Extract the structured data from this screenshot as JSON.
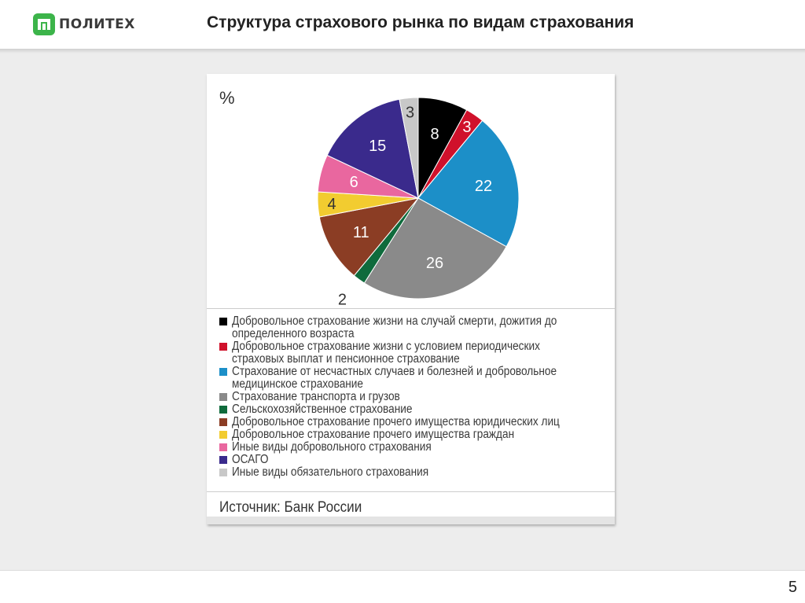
{
  "header": {
    "logo_text": "ПОЛИТЕХ",
    "title": "Структура страхового рынка по видам страхования"
  },
  "footer": {
    "page_number": "5"
  },
  "colors": {
    "logo_green": "#3cb44a",
    "content_bg": "#ededed"
  },
  "chart_data": {
    "type": "pie",
    "unit_label": "%",
    "start_angle_deg": 0,
    "direction": "clockwise",
    "slices": [
      {
        "label": "Добровольное страхование жизни на случай смерти, дожития до определенного возраста",
        "value": 8,
        "color": "#000000",
        "label_color": "#ffffff"
      },
      {
        "label": "Добровольное страхование жизни с условием периодических страховых выплат и пенсионное страхование",
        "value": 3,
        "color": "#d0112b",
        "label_color": "#ffffff"
      },
      {
        "label": "Страхование от несчастных случаев и болезней и добровольное медицинское страхование",
        "value": 22,
        "color": "#1c8fc8",
        "label_color": "#ffffff"
      },
      {
        "label": "Страхование транспорта и грузов",
        "value": 26,
        "color": "#8a8a8a",
        "label_color": "#ffffff"
      },
      {
        "label": "Сельскохозяйственное страхование",
        "value": 2,
        "color": "#0f6b3c",
        "label_color": "#333333",
        "label_outside": true
      },
      {
        "label": "Добровольное страхование прочего имущества юридических лиц",
        "value": 11,
        "color": "#8b3d24",
        "label_color": "#ffffff"
      },
      {
        "label": "Добровольное страхование прочего имущества граждан",
        "value": 4,
        "color": "#f2cc30",
        "label_color": "#333333"
      },
      {
        "label": "Иные виды добровольного страхования",
        "value": 6,
        "color": "#e9679f",
        "label_color": "#ffffff"
      },
      {
        "label": "ОСАГО",
        "value": 15,
        "color": "#3a2a8c",
        "label_color": "#ffffff"
      },
      {
        "label": "Иные виды обязательного страхования",
        "value": 3,
        "color": "#c8c8c8",
        "label_color": "#333333"
      }
    ],
    "legend_placement": "bottom",
    "source": "Источник: Банк России"
  }
}
